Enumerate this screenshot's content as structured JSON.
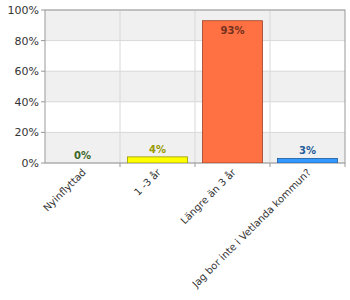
{
  "chart_data": {
    "type": "bar",
    "categories": [
      "Nyinflyttad",
      "1 -3 år",
      "Längre än 3 år",
      "Jag bor inte i Vetlanda kommun?"
    ],
    "values": [
      0,
      4,
      93,
      3
    ],
    "value_labels": [
      "0%",
      "4%",
      "93%",
      "3%"
    ],
    "colors": [
      "#66aa44",
      "#ffff00",
      "#ff7043",
      "#3399ff"
    ],
    "ylim": [
      0,
      100
    ],
    "yticks": [
      {
        "value": 0,
        "label": "0%"
      },
      {
        "value": 20,
        "label": "20%"
      },
      {
        "value": 40,
        "label": "40%"
      },
      {
        "value": 60,
        "label": "60%"
      },
      {
        "value": 80,
        "label": "80%"
      },
      {
        "value": 100,
        "label": "100%"
      }
    ],
    "grid": true,
    "data_labels": true
  }
}
